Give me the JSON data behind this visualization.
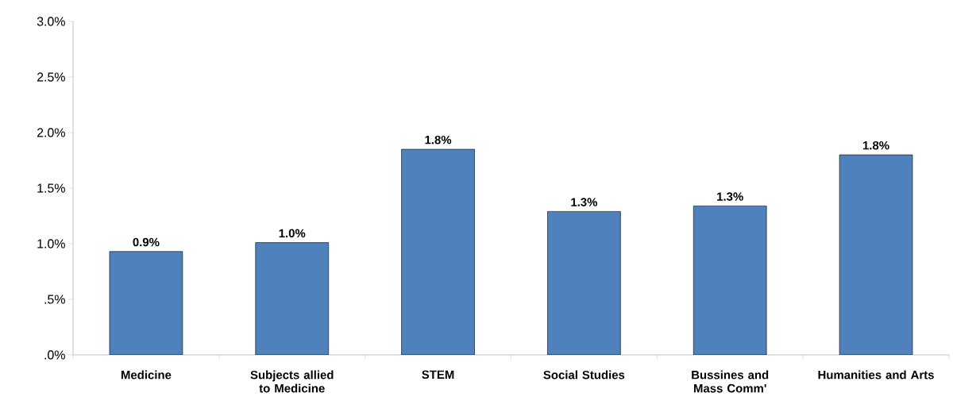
{
  "chart_data": {
    "type": "bar",
    "categories": [
      "Medicine",
      "Subjects allied to Medicine",
      "STEM",
      "Social Studies",
      "Bussines and Mass Comm'",
      "Humanities and Arts"
    ],
    "values": [
      0.93,
      1.01,
      1.85,
      1.29,
      1.34,
      1.8
    ],
    "value_labels": [
      "0.9%",
      "1.0%",
      "1.8%",
      "1.3%",
      "1.3%",
      "1.8%"
    ],
    "color": "#4f81bd",
    "ylim": [
      0,
      3
    ],
    "yticks": [
      {
        "value": 0,
        "label": ".0%"
      },
      {
        "value": 0.5,
        "label": ".5%"
      },
      {
        "value": 1,
        "label": "1.0%"
      },
      {
        "value": 1.5,
        "label": "1.5%"
      },
      {
        "value": 2,
        "label": "2.0%"
      },
      {
        "value": 2.5,
        "label": "2.5%"
      },
      {
        "value": 3,
        "label": "3.0%"
      }
    ],
    "grid": false
  }
}
